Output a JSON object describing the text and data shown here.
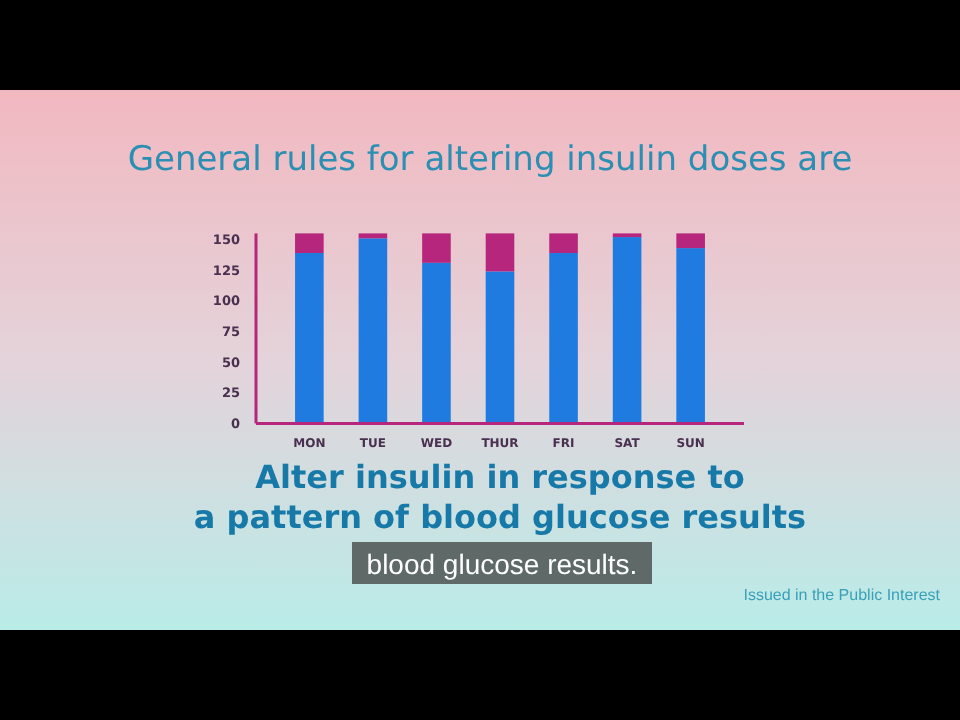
{
  "chart_data": {
    "type": "bar",
    "title": "General rules for altering insulin doses are",
    "categories": [
      "MON",
      "TUE",
      "WED",
      "THUR",
      "FRI",
      "SAT",
      "SUN"
    ],
    "stacked": true,
    "series": [
      {
        "color": "#1f7be0",
        "values": [
          139,
          151,
          131,
          124,
          139,
          152,
          143
        ]
      },
      {
        "color": "#b5267c",
        "values": [
          16,
          4,
          24,
          31,
          16,
          3,
          12
        ]
      }
    ],
    "ylim": [
      0,
      155
    ],
    "yticks": [
      0,
      25,
      50,
      75,
      100,
      125,
      150
    ],
    "grid": false,
    "annotations": [
      "Alter insulin in response to\na pattern of blood glucose results",
      "blood glucose results.",
      "Issued in the Public Interest"
    ]
  }
}
